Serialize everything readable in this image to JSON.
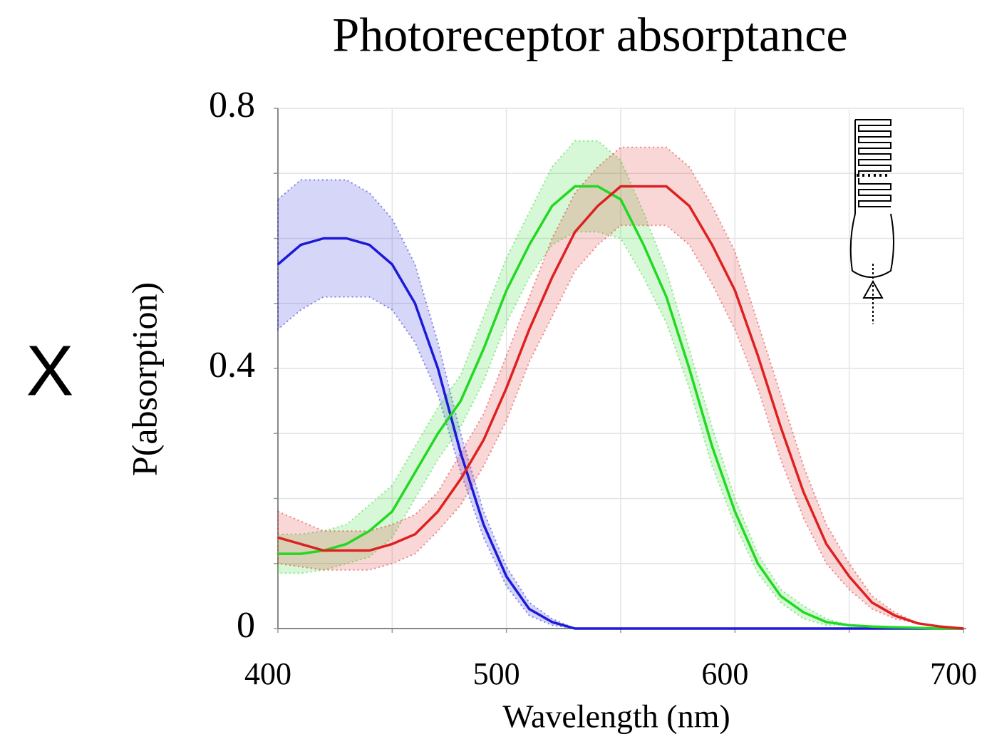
{
  "chart_data": {
    "type": "line",
    "title": "Photoreceptor absorptance",
    "side_label": "X",
    "x_label": "Wavelength (nm)",
    "y_label": "P(absorption)",
    "x": [
      400,
      410,
      420,
      430,
      440,
      450,
      460,
      470,
      480,
      490,
      500,
      510,
      520,
      530,
      540,
      550,
      560,
      570,
      580,
      590,
      600,
      610,
      620,
      630,
      640,
      650,
      660,
      670,
      680,
      690,
      700
    ],
    "series": [
      {
        "color": "#1a1ad8",
        "values": [
          0.56,
          0.59,
          0.6,
          0.6,
          0.59,
          0.56,
          0.5,
          0.4,
          0.27,
          0.16,
          0.08,
          0.03,
          0.01,
          0,
          0,
          0,
          0,
          0,
          0,
          0,
          0,
          0,
          0,
          0,
          0,
          0,
          0,
          0,
          0,
          0,
          0
        ],
        "errors": [
          0.1,
          0.1,
          0.09,
          0.09,
          0.08,
          0.07,
          0.06,
          0.04,
          0.03,
          0.02,
          0.015,
          0.01,
          0.005,
          0,
          0,
          0,
          0,
          0,
          0,
          0,
          0,
          0,
          0,
          0,
          0,
          0,
          0,
          0,
          0,
          0,
          0
        ]
      },
      {
        "color": "#22d822",
        "values": [
          0.115,
          0.115,
          0.12,
          0.13,
          0.15,
          0.18,
          0.24,
          0.3,
          0.35,
          0.43,
          0.52,
          0.59,
          0.65,
          0.68,
          0.68,
          0.66,
          0.59,
          0.51,
          0.4,
          0.28,
          0.18,
          0.1,
          0.05,
          0.025,
          0.01,
          0.005,
          0.003,
          0.002,
          0.001,
          0,
          0
        ],
        "errors": [
          0.03,
          0.03,
          0.03,
          0.03,
          0.04,
          0.04,
          0.04,
          0.04,
          0.04,
          0.05,
          0.05,
          0.05,
          0.06,
          0.07,
          0.07,
          0.06,
          0.05,
          0.04,
          0.03,
          0.03,
          0.02,
          0.015,
          0.01,
          0.01,
          0.005,
          0,
          0,
          0,
          0,
          0,
          0
        ]
      },
      {
        "color": "#dd2020",
        "values": [
          0.14,
          0.13,
          0.12,
          0.12,
          0.12,
          0.13,
          0.145,
          0.18,
          0.23,
          0.29,
          0.37,
          0.46,
          0.54,
          0.61,
          0.65,
          0.68,
          0.68,
          0.68,
          0.65,
          0.59,
          0.52,
          0.42,
          0.31,
          0.21,
          0.13,
          0.08,
          0.04,
          0.02,
          0.008,
          0.003,
          0
        ],
        "errors": [
          0.04,
          0.035,
          0.03,
          0.03,
          0.03,
          0.03,
          0.03,
          0.03,
          0.04,
          0.04,
          0.05,
          0.05,
          0.06,
          0.06,
          0.06,
          0.06,
          0.06,
          0.06,
          0.06,
          0.06,
          0.06,
          0.05,
          0.05,
          0.04,
          0.03,
          0.02,
          0.01,
          0.005,
          0,
          0,
          0
        ]
      }
    ],
    "xlim": [
      400,
      700
    ],
    "ylim": [
      0,
      0.8
    ],
    "xticks": [
      400,
      500,
      600,
      700
    ],
    "yticks": [
      0,
      0.4,
      0.8
    ],
    "xticks_minor": [
      450,
      550,
      650
    ],
    "yticks_minor": [
      0.1,
      0.2,
      0.3,
      0.5,
      0.6,
      0.7
    ],
    "grid": true
  }
}
